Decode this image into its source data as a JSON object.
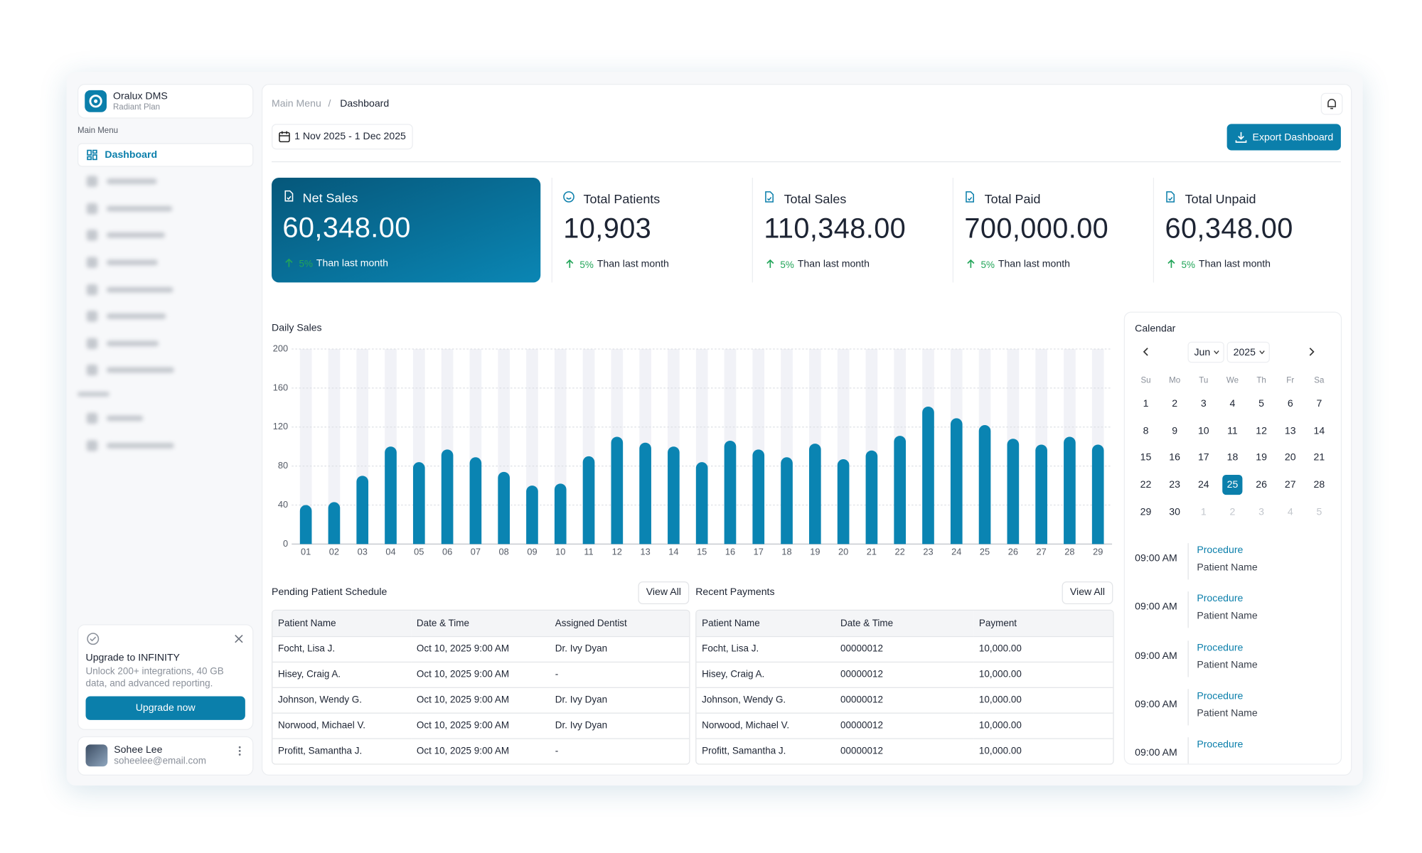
{
  "sidebar": {
    "brand": "Oralux DMS",
    "plan": "Radiant Plan",
    "section": "Main Menu",
    "active": "Dashboard",
    "upgrade": {
      "title": "Upgrade to INFINITY",
      "text": "Unlock 200+ integrations, 40 GB data, and advanced reporting.",
      "button": "Upgrade now"
    },
    "user": {
      "name": "Sohee Lee",
      "email": "soheelee@email.com"
    }
  },
  "header": {
    "breadcrumb": [
      "Main Menu",
      "Dashboard"
    ],
    "date_range": "1 Nov 2025 - 1 Dec 2025",
    "export": "Export Dashboard"
  },
  "kpis": [
    {
      "label": "Net Sales",
      "value": "60,348.00",
      "change": "5%",
      "note": "Than last month"
    },
    {
      "label": "Total Patients",
      "value": "10,903",
      "change": "5%",
      "note": "Than last month"
    },
    {
      "label": "Total Sales",
      "value": "110,348.00",
      "change": "5%",
      "note": "Than last month"
    },
    {
      "label": "Total Paid",
      "value": "700,000.00",
      "change": "5%",
      "note": "Than last month"
    },
    {
      "label": "Total Unpaid",
      "value": "60,348.00",
      "change": "5%",
      "note": "Than last month"
    }
  ],
  "chart_data": {
    "type": "bar",
    "title": "Daily Sales",
    "categories": [
      "01",
      "02",
      "03",
      "04",
      "05",
      "06",
      "07",
      "08",
      "09",
      "10",
      "11",
      "12",
      "13",
      "14",
      "15",
      "16",
      "17",
      "18",
      "19",
      "20",
      "21",
      "22",
      "23",
      "24",
      "25",
      "26",
      "27",
      "28",
      "29"
    ],
    "values": [
      40,
      43,
      70,
      100,
      84,
      97,
      89,
      74,
      60,
      62,
      90,
      110,
      104,
      100,
      84,
      106,
      97,
      89,
      103,
      87,
      96,
      111,
      141,
      129,
      122,
      108,
      102,
      110,
      102
    ],
    "color": "#0a84b2",
    "ylim": [
      0,
      200
    ],
    "yticks": [
      0,
      40,
      80,
      120,
      160,
      200
    ],
    "grid": true
  },
  "calendar": {
    "title": "Calendar",
    "month": "Jun",
    "year": "2025",
    "weekdays": [
      "Su",
      "Mo",
      "Tu",
      "We",
      "Th",
      "Fr",
      "Sa"
    ],
    "weeks": [
      [
        1,
        2,
        3,
        4,
        5,
        6,
        7
      ],
      [
        8,
        9,
        10,
        11,
        12,
        13,
        14
      ],
      [
        15,
        16,
        17,
        18,
        19,
        20,
        21
      ],
      [
        22,
        23,
        24,
        25,
        26,
        27,
        28
      ],
      [
        29,
        30,
        1,
        2,
        3,
        4,
        5
      ]
    ],
    "selected": 25
  },
  "schedule": [
    {
      "time": "09:00 AM",
      "title": "Procedure",
      "name": "Patient Name"
    },
    {
      "time": "09:00 AM",
      "title": "Procedure",
      "name": "Patient Name"
    },
    {
      "time": "09:00 AM",
      "title": "Procedure",
      "name": "Patient Name"
    },
    {
      "time": "09:00 AM",
      "title": "Procedure",
      "name": "Patient Name"
    },
    {
      "time": "09:00 AM",
      "title": "Procedure"
    }
  ],
  "tables": [
    {
      "title": "Pending Patient Schedule",
      "action": "View All",
      "columns": [
        "Patient Name",
        "Date & Time",
        "Assigned Dentist"
      ],
      "rows": [
        [
          "Focht, Lisa J.",
          "Oct 10, 2025 9:00 AM",
          "Dr. Ivy Dyan"
        ],
        [
          "Hisey, Craig A.",
          "Oct 10, 2025 9:00 AM",
          "-"
        ],
        [
          "Johnson, Wendy G.",
          "Oct 10, 2025 9:00 AM",
          "Dr. Ivy Dyan"
        ],
        [
          "Norwood, Michael V.",
          "Oct 10, 2025 9:00 AM",
          "Dr. Ivy Dyan"
        ],
        [
          "Profitt, Samantha J.",
          "Oct 10, 2025 9:00 AM",
          "-"
        ]
      ]
    },
    {
      "title": "Recent Payments",
      "action": "View All",
      "columns": [
        "Patient Name",
        "Date & Time",
        "Payment"
      ],
      "rows": [
        [
          "Focht, Lisa J.",
          "00000012",
          "10,000.00"
        ],
        [
          "Hisey, Craig A.",
          "00000012",
          "10,000.00"
        ],
        [
          "Johnson, Wendy G.",
          "00000012",
          "10,000.00"
        ],
        [
          "Norwood, Michael V.",
          "00000012",
          "10,000.00"
        ],
        [
          "Profitt, Samantha J.",
          "00000012",
          "10,000.00"
        ]
      ]
    }
  ]
}
